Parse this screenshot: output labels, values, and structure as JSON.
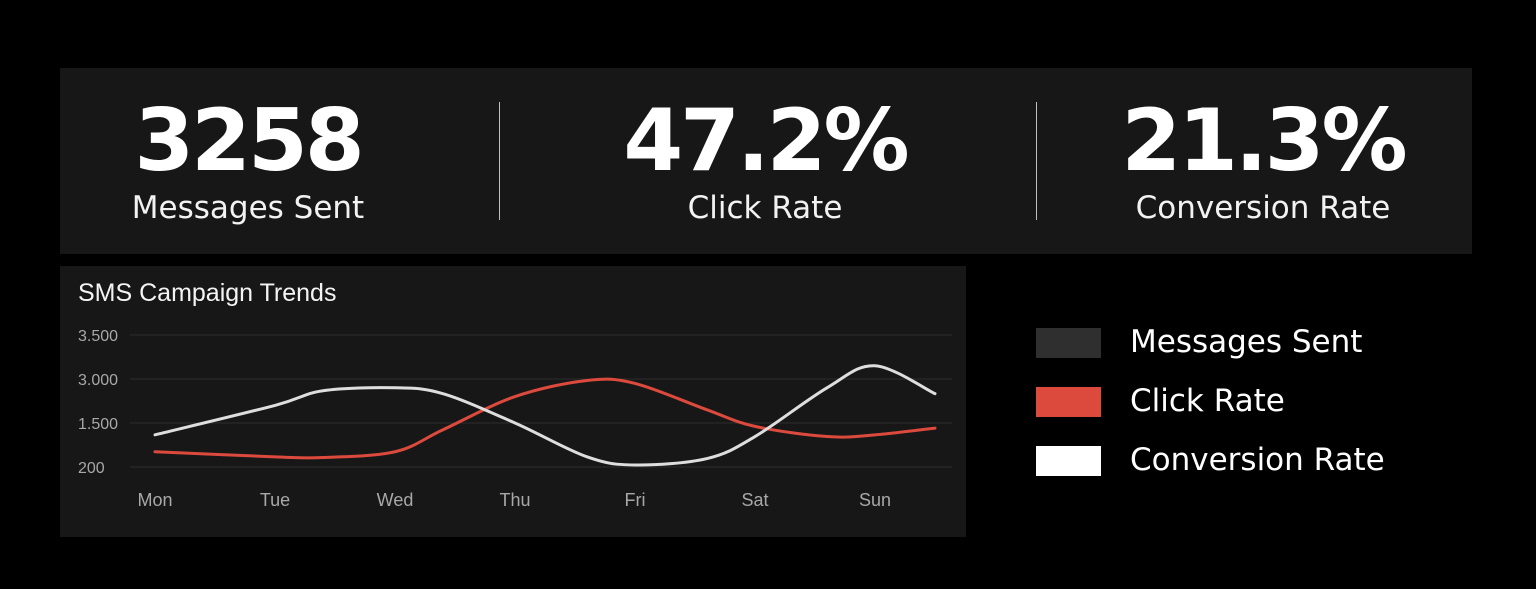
{
  "kpis": [
    {
      "value": "3258",
      "label": "Messages Sent"
    },
    {
      "value": "47.2%",
      "label": "Click Rate"
    },
    {
      "value": "21.3%",
      "label": "Conversion Rate"
    }
  ],
  "colors": {
    "background": "#000000",
    "panel": "#171717",
    "messages_sent": "#2f2f2f",
    "click_rate": "#dc4a3d",
    "conversion_rate": "#ffffff",
    "grid": "#2c2c2c",
    "tick_text": "#a8a8a8"
  },
  "chart_data": {
    "type": "line",
    "title": "SMS Campaign Trends",
    "categories": [
      "Mon",
      "Tue",
      "Wed",
      "Thu",
      "Fri",
      "Sat",
      "Sun"
    ],
    "yticks": [
      "3.500",
      "3.000",
      "1.500",
      "200"
    ],
    "grid": true,
    "legend_position": "right",
    "series": [
      {
        "name": "Click Rate",
        "color": "#dc4a3d",
        "x": [
          0,
          1,
          1.4,
          2,
          2.4,
          3,
          3.6,
          4,
          4.6,
          5,
          5.6,
          6,
          6.5
        ],
        "values": [
          650,
          500,
          480,
          650,
          1300,
          2400,
          2950,
          2850,
          1950,
          1400,
          1100,
          1150,
          1350
        ]
      },
      {
        "name": "Conversion Rate",
        "color": "#ffffff",
        "x": [
          0,
          1,
          1.4,
          2,
          2.4,
          3,
          3.6,
          4,
          4.6,
          5,
          5.6,
          6,
          6.5
        ],
        "values": [
          1150,
          2100,
          2600,
          2700,
          2500,
          1500,
          500,
          260,
          450,
          1100,
          2700,
          3150,
          2500
        ]
      }
    ]
  },
  "legend": [
    {
      "label": "Messages Sent",
      "color": "#2f2f2f"
    },
    {
      "label": "Click Rate",
      "color": "#dc4a3d"
    },
    {
      "label": "Conversion Rate",
      "color": "#ffffff"
    }
  ]
}
